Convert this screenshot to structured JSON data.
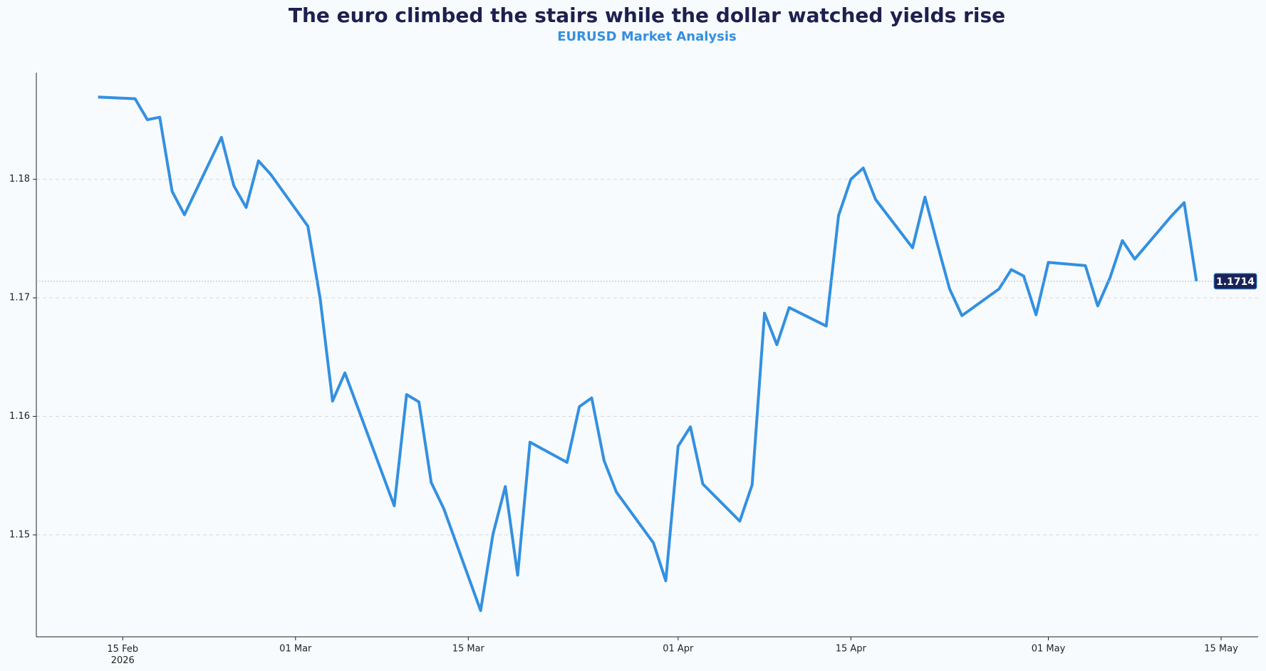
{
  "chart_data": {
    "type": "line",
    "title": "The euro climbed the stairs while the dollar watched yields rise",
    "subtitle": "EURUSD Market Analysis",
    "x": [
      "2026-02-13",
      "2026-02-16",
      "2026-02-17",
      "2026-02-18",
      "2026-02-19",
      "2026-02-20",
      "2026-02-23",
      "2026-02-24",
      "2026-02-25",
      "2026-02-26",
      "2026-02-27",
      "2026-03-02",
      "2026-03-03",
      "2026-03-04",
      "2026-03-05",
      "2026-03-09",
      "2026-03-10",
      "2026-03-11",
      "2026-03-12",
      "2026-03-13",
      "2026-03-16",
      "2026-03-17",
      "2026-03-18",
      "2026-03-19",
      "2026-03-20",
      "2026-03-23",
      "2026-03-24",
      "2026-03-25",
      "2026-03-26",
      "2026-03-27",
      "2026-03-30",
      "2026-03-31",
      "2026-04-01",
      "2026-04-02",
      "2026-04-03",
      "2026-04-06",
      "2026-04-07",
      "2026-04-08",
      "2026-04-09",
      "2026-04-10",
      "2026-04-13",
      "2026-04-14",
      "2026-04-15",
      "2026-04-16",
      "2026-04-17",
      "2026-04-20",
      "2026-04-21",
      "2026-04-22",
      "2026-04-23",
      "2026-04-24",
      "2026-04-27",
      "2026-04-28",
      "2026-04-29",
      "2026-04-30",
      "2026-05-01",
      "2026-05-04",
      "2026-05-05",
      "2026-05-06",
      "2026-05-07",
      "2026-05-08",
      "2026-05-11",
      "2026-05-12",
      "2026-05-13"
    ],
    "series": [
      {
        "name": "EURUSD",
        "color": "#3390e0",
        "values": [
          1.18694,
          1.1868,
          1.18503,
          1.18524,
          1.17898,
          1.17701,
          1.18354,
          1.17946,
          1.17762,
          1.18156,
          1.18041,
          1.17605,
          1.16993,
          1.16129,
          1.16367,
          1.15245,
          1.16184,
          1.16122,
          1.15442,
          1.15224,
          1.14361,
          1.15007,
          1.15408,
          1.1466,
          1.15782,
          1.15612,
          1.16082,
          1.16156,
          1.15626,
          1.15361,
          1.14932,
          1.14612,
          1.15748,
          1.15912,
          1.15429,
          1.15116,
          1.15422,
          1.16871,
          1.16605,
          1.16918,
          1.16762,
          1.17694,
          1.18,
          1.18095,
          1.1783,
          1.17422,
          1.1785,
          1.17456,
          1.17075,
          1.1685,
          1.17075,
          1.17238,
          1.17184,
          1.16857,
          1.17299,
          1.17272,
          1.16932,
          1.1717,
          1.17483,
          1.17327,
          1.17694,
          1.17803,
          1.1714
        ]
      }
    ],
    "xlim": [
      "2026-02-08",
      "2026-05-18"
    ],
    "xticks": [
      {
        "value": "2026-02-15",
        "label": "15 Feb\n2026"
      },
      {
        "value": "2026-03-01",
        "label": "01 Mar"
      },
      {
        "value": "2026-03-15",
        "label": "15 Mar"
      },
      {
        "value": "2026-04-01",
        "label": "01 Apr"
      },
      {
        "value": "2026-04-15",
        "label": "15 Apr"
      },
      {
        "value": "2026-05-01",
        "label": "01 May"
      },
      {
        "value": "2026-05-15",
        "label": "15 May"
      }
    ],
    "ylim": [
      1.1414,
      1.189
    ],
    "yticks": [
      1.15,
      1.16,
      1.17,
      1.18
    ],
    "grid": true
  }
}
